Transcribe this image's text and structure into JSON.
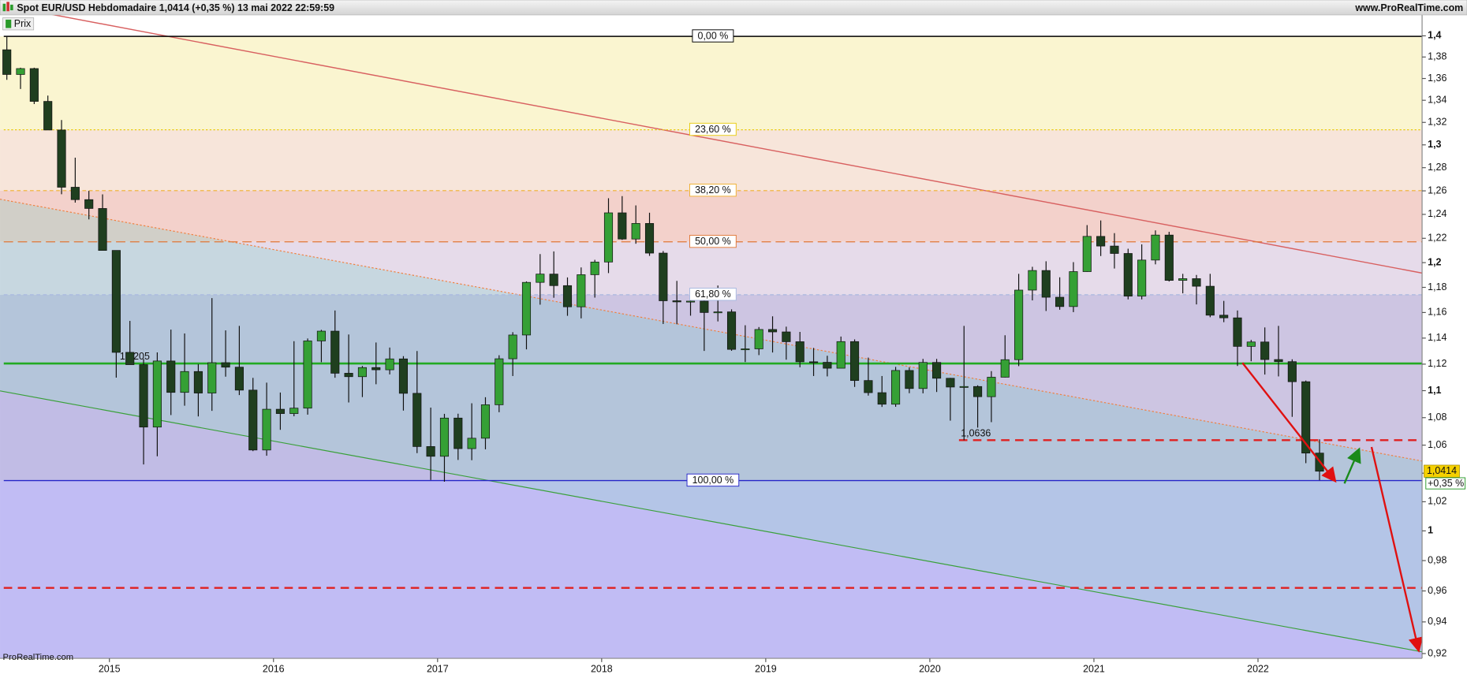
{
  "chart_data": {
    "type": "candlestick",
    "title": "Spot EUR/USD Hebdomadaire 1,0414 (+0,35 %) 13 mai 2022 22:59:59",
    "site": "www.ProRealTime.com",
    "legend": "Prix",
    "watermark": "ProRealTime.com",
    "log_scale": true,
    "ylim": [
      0.917,
      1.42
    ],
    "xlim": [
      "2014-05",
      "2023-01"
    ],
    "yticks": [
      {
        "value": 0.92,
        "label": "0,92"
      },
      {
        "value": 0.94,
        "label": "0,94"
      },
      {
        "value": 0.96,
        "label": "0,96"
      },
      {
        "value": 0.98,
        "label": "0,98"
      },
      {
        "value": 1,
        "label": "1"
      },
      {
        "value": 1.02,
        "label": "1,02"
      },
      {
        "value": 1.04,
        "label": "1,04"
      },
      {
        "value": 1.06,
        "label": "1,06"
      },
      {
        "value": 1.08,
        "label": "1,08"
      },
      {
        "value": 1.1,
        "label": "1,1"
      },
      {
        "value": 1.12,
        "label": "1,12"
      },
      {
        "value": 1.14,
        "label": "1,14"
      },
      {
        "value": 1.16,
        "label": "1,16"
      },
      {
        "value": 1.18,
        "label": "1,18"
      },
      {
        "value": 1.2,
        "label": "1,2"
      },
      {
        "value": 1.22,
        "label": "1,22"
      },
      {
        "value": 1.24,
        "label": "1,24"
      },
      {
        "value": 1.26,
        "label": "1,26"
      },
      {
        "value": 1.28,
        "label": "1,28"
      },
      {
        "value": 1.3,
        "label": "1,3"
      },
      {
        "value": 1.32,
        "label": "1,32"
      },
      {
        "value": 1.34,
        "label": "1,34"
      },
      {
        "value": 1.36,
        "label": "1,36"
      },
      {
        "value": 1.38,
        "label": "1,38"
      },
      {
        "value": 1.4,
        "label": "1,4"
      }
    ],
    "xticks": [
      "2015",
      "2016",
      "2017",
      "2018",
      "2019",
      "2020",
      "2021",
      "2022"
    ],
    "up_color": "#35a035",
    "down_color": "#1f3f1f",
    "x": [
      "2014-05",
      "2014-06",
      "2014-07",
      "2014-08",
      "2014-09",
      "2014-10",
      "2014-11",
      "2014-12",
      "2015-01",
      "2015-02",
      "2015-03",
      "2015-04",
      "2015-05",
      "2015-06",
      "2015-07",
      "2015-08",
      "2015-09",
      "2015-10",
      "2015-11",
      "2015-12",
      "2016-01",
      "2016-02",
      "2016-03",
      "2016-04",
      "2016-05",
      "2016-06",
      "2016-07",
      "2016-08",
      "2016-09",
      "2016-10",
      "2016-11",
      "2016-12",
      "2017-01",
      "2017-02",
      "2017-03",
      "2017-04",
      "2017-05",
      "2017-06",
      "2017-07",
      "2017-08",
      "2017-09",
      "2017-10",
      "2017-11",
      "2017-12",
      "2018-01",
      "2018-02",
      "2018-03",
      "2018-04",
      "2018-05",
      "2018-06",
      "2018-07",
      "2018-08",
      "2018-09",
      "2018-10",
      "2018-11",
      "2018-12",
      "2019-01",
      "2019-02",
      "2019-03",
      "2019-04",
      "2019-05",
      "2019-06",
      "2019-07",
      "2019-08",
      "2019-09",
      "2019-10",
      "2019-11",
      "2019-12",
      "2020-01",
      "2020-02",
      "2020-03",
      "2020-04",
      "2020-05",
      "2020-06",
      "2020-07",
      "2020-08",
      "2020-09",
      "2020-10",
      "2020-11",
      "2020-12",
      "2021-01",
      "2021-02",
      "2021-03",
      "2021-04",
      "2021-05",
      "2021-06",
      "2021-07",
      "2021-08",
      "2021-09",
      "2021-10",
      "2021-11",
      "2021-12",
      "2022-01",
      "2022-02",
      "2022-03",
      "2022-04",
      "2022-05"
    ],
    "open": [
      1.3868,
      1.3637,
      1.3692,
      1.339,
      1.3132,
      1.2631,
      1.2525,
      1.245,
      1.21,
      1.129,
      1.1196,
      1.0731,
      1.1224,
      1.0987,
      1.1144,
      1.0982,
      1.1211,
      1.1177,
      1.1004,
      1.0565,
      1.0862,
      1.083,
      1.087,
      1.1378,
      1.1454,
      1.1131,
      1.1105,
      1.1174,
      1.1157,
      1.124,
      1.098,
      1.059,
      1.052,
      1.0797,
      1.0575,
      1.065,
      1.0895,
      1.1241,
      1.1424,
      1.184,
      1.1907,
      1.1814,
      1.1645,
      1.1902,
      1.2005,
      1.2413,
      1.2194,
      1.2324,
      1.2078,
      1.1693,
      1.1684,
      1.169,
      1.16,
      1.1605,
      1.1313,
      1.1317,
      1.1467,
      1.1448,
      1.1372,
      1.1218,
      1.1214,
      1.1169,
      1.1373,
      1.1076,
      1.0985,
      1.0899,
      1.1152,
      1.1016,
      1.1213,
      1.1093,
      1.1027,
      1.1031,
      1.0955,
      1.1101,
      1.1234,
      1.1778,
      1.1936,
      1.1721,
      1.1647,
      1.1927,
      1.2216,
      1.2136,
      1.2075,
      1.173,
      1.2021,
      1.2227,
      1.1856,
      1.187,
      1.1809,
      1.1579,
      1.1558,
      1.1336,
      1.137,
      1.1235,
      1.1219,
      1.1067,
      1.0543
    ],
    "high": [
      1.3995,
      1.37,
      1.37,
      1.3443,
      1.3221,
      1.2887,
      1.26,
      1.257,
      1.21,
      1.1534,
      1.124,
      1.129,
      1.1466,
      1.1436,
      1.12,
      1.1714,
      1.146,
      1.1495,
      1.1096,
      1.106,
      1.0986,
      1.1376,
      1.1397,
      1.1464,
      1.1616,
      1.1428,
      1.1186,
      1.1366,
      1.1327,
      1.1261,
      1.13,
      1.0874,
      1.0828,
      1.0829,
      1.0906,
      1.0951,
      1.1268,
      1.1446,
      1.1848,
      1.207,
      1.2092,
      1.188,
      1.1961,
      1.2023,
      1.2537,
      1.2555,
      1.2476,
      1.2414,
      1.2095,
      1.1852,
      1.1791,
      1.1734,
      1.1815,
      1.1625,
      1.15,
      1.1486,
      1.157,
      1.1489,
      1.1448,
      1.1324,
      1.1264,
      1.1412,
      1.139,
      1.125,
      1.111,
      1.1179,
      1.1175,
      1.124,
      1.124,
      1.1096,
      1.1495,
      1.104,
      1.1147,
      1.1422,
      1.1909,
      1.1966,
      1.2011,
      1.1881,
      1.2004,
      1.231,
      1.2349,
      1.2243,
      1.2114,
      1.215,
      1.2266,
      1.2254,
      1.1909,
      1.19,
      1.1909,
      1.1692,
      1.1616,
      1.1386,
      1.1483,
      1.1495,
      1.1237,
      1.1076,
      1.0642
    ],
    "low": [
      1.3588,
      1.3503,
      1.3366,
      1.3133,
      1.2571,
      1.25,
      1.2358,
      1.21,
      1.1098,
      1.12,
      1.0462,
      1.052,
      1.0819,
      1.0888,
      1.0809,
      1.085,
      1.1105,
      1.0967,
      1.0557,
      1.0524,
      1.0711,
      1.081,
      1.0822,
      1.1215,
      1.1097,
      1.0912,
      1.0952,
      1.1048,
      1.1122,
      1.0852,
      1.0543,
      1.0352,
      1.034,
      1.0494,
      1.0492,
      1.057,
      1.084,
      1.111,
      1.1313,
      1.1662,
      1.1717,
      1.1574,
      1.1554,
      1.1718,
      1.1915,
      1.2187,
      1.2155,
      1.2055,
      1.151,
      1.1508,
      1.1575,
      1.1301,
      1.153,
      1.1302,
      1.1216,
      1.1269,
      1.1289,
      1.1234,
      1.1176,
      1.111,
      1.1107,
      1.1181,
      1.1028,
      1.0963,
      1.0879,
      1.088,
      1.0981,
      1.098,
      1.099,
      1.0778,
      1.0636,
      1.0727,
      1.0767,
      1.1099,
      1.1185,
      1.1696,
      1.1612,
      1.1622,
      1.1603,
      1.1925,
      1.2054,
      1.1952,
      1.1704,
      1.1704,
      1.1986,
      1.1847,
      1.1752,
      1.1664,
      1.1563,
      1.1524,
      1.1186,
      1.1222,
      1.1121,
      1.1107,
      1.0806,
      1.0471,
      1.035
    ],
    "close": [
      1.3637,
      1.3692,
      1.339,
      1.3132,
      1.2631,
      1.2525,
      1.245,
      1.21,
      1.129,
      1.1196,
      1.0731,
      1.1224,
      1.0987,
      1.1144,
      1.0982,
      1.1211,
      1.1177,
      1.1004,
      1.0565,
      1.0862,
      1.083,
      1.087,
      1.1378,
      1.1454,
      1.1131,
      1.1105,
      1.1174,
      1.1157,
      1.124,
      1.098,
      1.059,
      1.052,
      1.0797,
      1.0575,
      1.065,
      1.0895,
      1.1241,
      1.1424,
      1.184,
      1.1907,
      1.1814,
      1.1645,
      1.1902,
      1.2005,
      1.2413,
      1.2194,
      1.2324,
      1.2078,
      1.1693,
      1.1684,
      1.169,
      1.16,
      1.1605,
      1.1313,
      1.1317,
      1.1467,
      1.1448,
      1.1372,
      1.1218,
      1.1214,
      1.1169,
      1.1373,
      1.1076,
      1.0985,
      1.0899,
      1.1152,
      1.1016,
      1.1213,
      1.1093,
      1.1027,
      1.1031,
      1.0955,
      1.1101,
      1.1234,
      1.1778,
      1.1936,
      1.1721,
      1.1647,
      1.1927,
      1.2216,
      1.2136,
      1.2075,
      1.173,
      1.2021,
      1.2227,
      1.1856,
      1.187,
      1.1809,
      1.1579,
      1.1558,
      1.1336,
      1.137,
      1.1235,
      1.1219,
      1.1067,
      1.0543,
      1.0414
    ],
    "fib_levels": [
      {
        "value": 1.3995,
        "label": "0,00 %"
      },
      {
        "value": 1.3134,
        "label": "23,60 %"
      },
      {
        "value": 1.2602,
        "label": "38,20 %"
      },
      {
        "value": 1.2171,
        "label": "50,00 %"
      },
      {
        "value": 1.1741,
        "label": "61,80 %"
      },
      {
        "value": 1.0348,
        "label": "100,00 %"
      }
    ],
    "fib_colors": [
      "#000000",
      "#e8cc10",
      "#f0b030",
      "#e07838",
      "#a8b8e0",
      "#2626c8"
    ],
    "fib_zone_colors": [
      "#faf5d0",
      "#f7e5da",
      "#f3d1cb",
      "#e6dbea",
      "#cdc5e2",
      "#cdc5f3"
    ],
    "levels": [
      {
        "value": 1.1205,
        "label": "1,1205",
        "color": "#22aa22",
        "dashed": false
      },
      {
        "value": 1.0636,
        "label": "1,0636",
        "color": "#e02020",
        "dashed": true
      },
      {
        "value": 0.962,
        "color": "#e02020",
        "dashed": true
      }
    ],
    "last_price": {
      "value": 1.0414,
      "label": "1,0414"
    },
    "change": {
      "value": 0.35,
      "label": "+0,35 %"
    }
  }
}
